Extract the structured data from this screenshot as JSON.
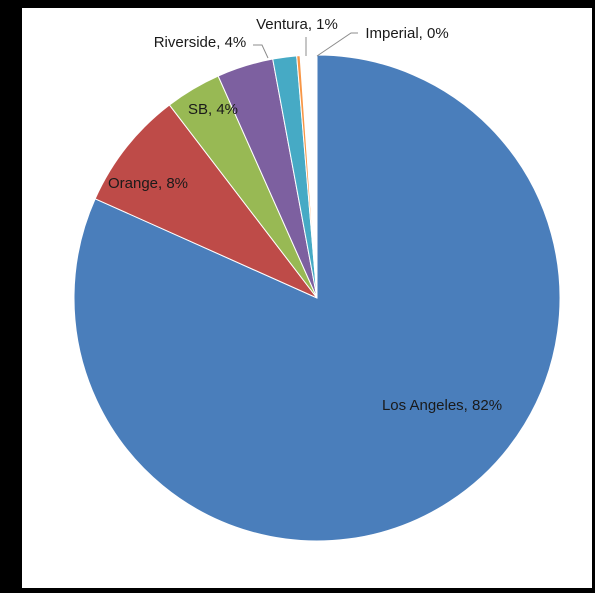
{
  "chart_data": {
    "type": "pie",
    "title": "",
    "slices": [
      {
        "name": "Los Angeles",
        "value": 82,
        "label": "Los Angeles, 82%",
        "color": "#4A7EBB"
      },
      {
        "name": "Orange",
        "value": 8,
        "label": "Orange, 8%",
        "color": "#BE4B48"
      },
      {
        "name": "SB",
        "value": 4,
        "label": "SB, 4%",
        "color": "#98B954"
      },
      {
        "name": "Riverside",
        "value": 4,
        "label": "Riverside, 4%",
        "color": "#7D60A0"
      },
      {
        "name": "Ventura",
        "value": 1,
        "label": "Ventura, 1%",
        "color": "#46AAC5"
      },
      {
        "name": "Imperial",
        "value": 0,
        "label": "Imperial, 0%",
        "color": "#F79646"
      }
    ],
    "legend": "none",
    "data_labels": "category and percentage"
  }
}
